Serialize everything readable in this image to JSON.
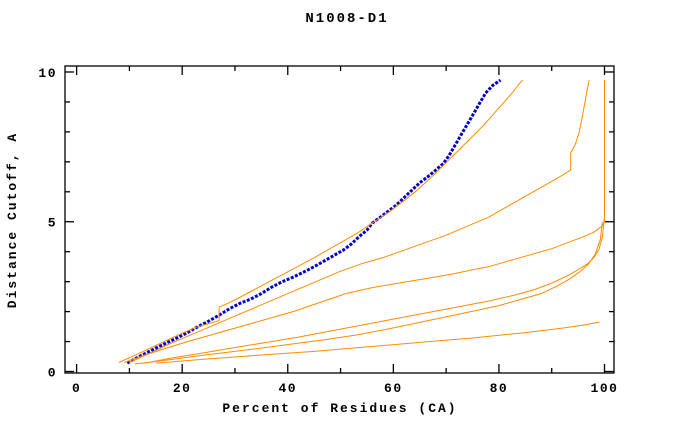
{
  "window": {
    "title": "N1008-D1"
  },
  "colors": {
    "background": "#ffffff",
    "axis": "#000000",
    "model_curve": "#ff8c00",
    "reference_curve": "#0000cd"
  },
  "chart_data": {
    "type": "line",
    "title": "N1008-D1",
    "xlabel": "Percent of Residues (CA)",
    "ylabel": "Distance Cutoff, A",
    "xlim": [
      -2.2,
      101.8
    ],
    "ylim": [
      -0.05,
      10.2
    ],
    "x_major_ticks": [
      0,
      20,
      40,
      60,
      80,
      100
    ],
    "x_minor_ticks": [
      10,
      30,
      50,
      70,
      90
    ],
    "y_major_ticks": [
      0,
      5,
      10
    ],
    "y_minor_ticks": [
      1,
      2,
      3,
      4,
      6,
      7,
      8,
      9
    ],
    "grid": false,
    "legend_position": "none",
    "series": [
      {
        "name": "blue-reference-curve",
        "color": "#0000cd",
        "width": 3,
        "dash": "3 1.5",
        "points": [
          [
            9.6,
            0.28
          ],
          [
            11,
            0.42
          ],
          [
            13,
            0.6
          ],
          [
            15,
            0.78
          ],
          [
            17,
            0.95
          ],
          [
            19,
            1.12
          ],
          [
            21,
            1.3
          ],
          [
            23,
            1.5
          ],
          [
            25,
            1.68
          ],
          [
            27,
            1.88
          ],
          [
            29,
            2.1
          ],
          [
            31,
            2.28
          ],
          [
            33,
            2.42
          ],
          [
            35,
            2.6
          ],
          [
            37,
            2.82
          ],
          [
            39,
            3.0
          ],
          [
            41,
            3.15
          ],
          [
            43,
            3.32
          ],
          [
            45,
            3.5
          ],
          [
            47,
            3.7
          ],
          [
            49,
            3.9
          ],
          [
            50.5,
            4.05
          ],
          [
            52,
            4.25
          ],
          [
            53.5,
            4.5
          ],
          [
            55,
            4.72
          ],
          [
            56,
            4.95
          ],
          [
            57.5,
            5.15
          ],
          [
            59,
            5.35
          ],
          [
            60.5,
            5.55
          ],
          [
            62,
            5.8
          ],
          [
            63.5,
            6.05
          ],
          [
            65,
            6.3
          ],
          [
            66.5,
            6.5
          ],
          [
            68,
            6.72
          ],
          [
            69.5,
            6.95
          ],
          [
            70.5,
            7.2
          ],
          [
            71.5,
            7.5
          ],
          [
            72.5,
            7.8
          ],
          [
            73.5,
            8.1
          ],
          [
            74.5,
            8.4
          ],
          [
            75.5,
            8.7
          ],
          [
            76.5,
            9.0
          ],
          [
            77.5,
            9.3
          ],
          [
            78.8,
            9.55
          ],
          [
            80.3,
            9.73
          ]
        ]
      },
      {
        "name": "orange-curve-1-step",
        "color": "#ff8c00",
        "width": 1,
        "dash": "",
        "points": [
          [
            8,
            0.3
          ],
          [
            12,
            0.62
          ],
          [
            16,
            0.95
          ],
          [
            20,
            1.28
          ],
          [
            23,
            1.5
          ],
          [
            25.5,
            1.62
          ],
          [
            27,
            1.7
          ],
          [
            27,
            2.15
          ],
          [
            29,
            2.3
          ],
          [
            33,
            2.67
          ],
          [
            37,
            3.05
          ],
          [
            41,
            3.42
          ],
          [
            45,
            3.8
          ],
          [
            49,
            4.2
          ],
          [
            53,
            4.6
          ],
          [
            56,
            4.95
          ],
          [
            59,
            5.3
          ],
          [
            62,
            5.7
          ],
          [
            64.5,
            6.05
          ],
          [
            67,
            6.45
          ],
          [
            69,
            6.8
          ],
          [
            71,
            7.15
          ],
          [
            73,
            7.5
          ],
          [
            75,
            7.85
          ],
          [
            77,
            8.2
          ],
          [
            79,
            8.6
          ],
          [
            81,
            9.0
          ],
          [
            82.5,
            9.3
          ],
          [
            83.8,
            9.6
          ],
          [
            84.5,
            9.73
          ]
        ]
      },
      {
        "name": "orange-curve-2",
        "color": "#ff8c00",
        "width": 1,
        "dash": "",
        "points": [
          [
            10,
            0.3
          ],
          [
            14,
            0.62
          ],
          [
            18,
            0.95
          ],
          [
            22,
            1.25
          ],
          [
            26,
            1.55
          ],
          [
            30,
            1.85
          ],
          [
            34,
            2.15
          ],
          [
            38,
            2.45
          ],
          [
            42,
            2.75
          ],
          [
            46,
            3.05
          ],
          [
            50,
            3.35
          ],
          [
            54,
            3.6
          ],
          [
            58,
            3.8
          ],
          [
            62,
            4.05
          ],
          [
            66,
            4.3
          ],
          [
            70,
            4.55
          ],
          [
            74,
            4.85
          ],
          [
            78,
            5.15
          ],
          [
            81,
            5.45
          ],
          [
            84,
            5.75
          ],
          [
            87,
            6.05
          ],
          [
            90,
            6.35
          ],
          [
            92,
            6.55
          ],
          [
            93.6,
            6.73
          ],
          [
            93.6,
            7.3
          ],
          [
            94.5,
            7.6
          ],
          [
            95.2,
            8.0
          ],
          [
            95.8,
            8.5
          ],
          [
            96.3,
            9.0
          ],
          [
            96.7,
            9.4
          ],
          [
            97.1,
            9.73
          ]
        ]
      },
      {
        "name": "orange-curve-3-vertical-100",
        "color": "#ff8c00",
        "width": 1,
        "dash": "",
        "points": [
          [
            9,
            0.3
          ],
          [
            13,
            0.55
          ],
          [
            17,
            0.78
          ],
          [
            21,
            1.0
          ],
          [
            26,
            1.25
          ],
          [
            31,
            1.5
          ],
          [
            36,
            1.75
          ],
          [
            41,
            2.0
          ],
          [
            46,
            2.3
          ],
          [
            51,
            2.6
          ],
          [
            56,
            2.8
          ],
          [
            61,
            2.95
          ],
          [
            66,
            3.1
          ],
          [
            71,
            3.25
          ],
          [
            75,
            3.4
          ],
          [
            78,
            3.5
          ],
          [
            82,
            3.7
          ],
          [
            86,
            3.9
          ],
          [
            90,
            4.1
          ],
          [
            93,
            4.3
          ],
          [
            96,
            4.5
          ],
          [
            98,
            4.65
          ],
          [
            99.5,
            4.85
          ],
          [
            100,
            5.0
          ],
          [
            100,
            9.73
          ]
        ]
      },
      {
        "name": "orange-curve-4",
        "color": "#ff8c00",
        "width": 1,
        "dash": "",
        "points": [
          [
            13,
            0.28
          ],
          [
            18,
            0.45
          ],
          [
            24,
            0.62
          ],
          [
            30,
            0.8
          ],
          [
            36,
            0.97
          ],
          [
            42,
            1.15
          ],
          [
            48,
            1.35
          ],
          [
            54,
            1.55
          ],
          [
            60,
            1.75
          ],
          [
            66,
            1.95
          ],
          [
            72,
            2.15
          ],
          [
            78,
            2.35
          ],
          [
            83,
            2.55
          ],
          [
            87,
            2.75
          ],
          [
            90,
            2.95
          ],
          [
            93,
            3.2
          ],
          [
            95,
            3.4
          ],
          [
            96.8,
            3.6
          ],
          [
            98,
            3.8
          ],
          [
            99,
            4.1
          ],
          [
            99.6,
            4.5
          ],
          [
            100,
            5.2
          ]
        ]
      },
      {
        "name": "orange-curve-5",
        "color": "#ff8c00",
        "width": 1,
        "dash": "",
        "points": [
          [
            11,
            0.25
          ],
          [
            17,
            0.38
          ],
          [
            23,
            0.52
          ],
          [
            29,
            0.65
          ],
          [
            35,
            0.78
          ],
          [
            41,
            0.92
          ],
          [
            47,
            1.06
          ],
          [
            53,
            1.22
          ],
          [
            59,
            1.42
          ],
          [
            65,
            1.64
          ],
          [
            71,
            1.86
          ],
          [
            76,
            2.05
          ],
          [
            80,
            2.2
          ],
          [
            84,
            2.4
          ],
          [
            88,
            2.6
          ],
          [
            91,
            2.85
          ],
          [
            93.5,
            3.1
          ],
          [
            95.5,
            3.35
          ],
          [
            97,
            3.6
          ],
          [
            98.2,
            3.9
          ],
          [
            99.2,
            4.4
          ],
          [
            99.6,
            5.0
          ]
        ]
      },
      {
        "name": "orange-curve-6-low",
        "color": "#ff8c00",
        "width": 1,
        "dash": "",
        "points": [
          [
            15,
            0.28
          ],
          [
            25,
            0.42
          ],
          [
            35,
            0.55
          ],
          [
            45,
            0.67
          ],
          [
            55,
            0.82
          ],
          [
            65,
            0.97
          ],
          [
            75,
            1.12
          ],
          [
            85,
            1.3
          ],
          [
            92,
            1.45
          ],
          [
            96,
            1.55
          ],
          [
            99,
            1.65
          ]
        ]
      }
    ]
  }
}
